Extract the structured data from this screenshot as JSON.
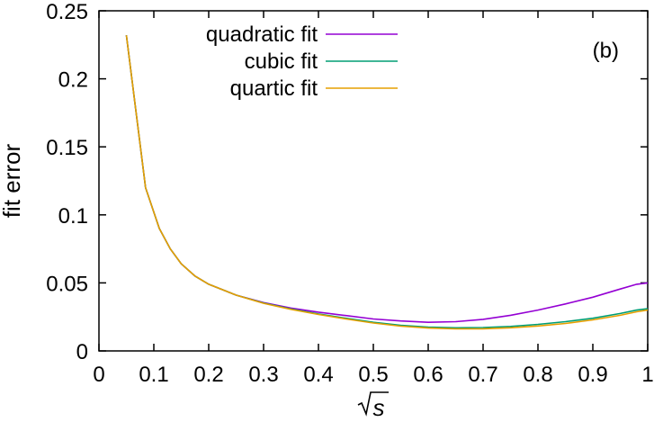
{
  "chart_data": {
    "type": "line",
    "title": "",
    "xlabel": "√s",
    "ylabel": "fit error",
    "xlim": [
      0,
      1
    ],
    "ylim": [
      0,
      0.25
    ],
    "xticks": [
      0,
      0.1,
      0.2,
      0.3,
      0.4,
      0.5,
      0.6,
      0.7,
      0.8,
      0.9,
      1
    ],
    "xtick_labels": [
      "0",
      "0.1",
      "0.2",
      "0.3",
      "0.4",
      "0.5",
      "0.6",
      "0.7",
      "0.8",
      "0.9",
      "1"
    ],
    "yticks": [
      0,
      0.05,
      0.1,
      0.15,
      0.2,
      0.25
    ],
    "ytick_labels": [
      "0",
      "0.05",
      "0.1",
      "0.15",
      "0.2",
      "0.25"
    ],
    "grid": false,
    "legend_position": "top-right",
    "annotation": "(b)",
    "series": [
      {
        "name": "quadratic fit",
        "color": "#9400d3",
        "x": [
          0.05,
          0.085,
          0.11,
          0.13,
          0.15,
          0.175,
          0.2,
          0.25,
          0.3,
          0.35,
          0.4,
          0.45,
          0.5,
          0.55,
          0.6,
          0.65,
          0.7,
          0.75,
          0.8,
          0.85,
          0.9,
          0.95,
          0.98,
          1.0
        ],
        "y": [
          0.232,
          0.12,
          0.09,
          0.075,
          0.064,
          0.055,
          0.049,
          0.041,
          0.0355,
          0.0315,
          0.0285,
          0.026,
          0.0235,
          0.022,
          0.021,
          0.0215,
          0.0232,
          0.0262,
          0.03,
          0.0345,
          0.0395,
          0.0455,
          0.049,
          0.05
        ]
      },
      {
        "name": "cubic fit",
        "color": "#009e73",
        "x": [
          0.05,
          0.085,
          0.11,
          0.13,
          0.15,
          0.175,
          0.2,
          0.25,
          0.3,
          0.35,
          0.4,
          0.45,
          0.5,
          0.55,
          0.6,
          0.65,
          0.7,
          0.75,
          0.8,
          0.85,
          0.9,
          0.95,
          0.98,
          1.0
        ],
        "y": [
          0.232,
          0.12,
          0.09,
          0.075,
          0.064,
          0.055,
          0.049,
          0.041,
          0.0352,
          0.0308,
          0.0272,
          0.024,
          0.021,
          0.0188,
          0.0175,
          0.017,
          0.0172,
          0.018,
          0.0195,
          0.0215,
          0.024,
          0.0275,
          0.03,
          0.031
        ]
      },
      {
        "name": "quartic fit",
        "color": "#e69f00",
        "x": [
          0.05,
          0.085,
          0.11,
          0.13,
          0.15,
          0.175,
          0.2,
          0.25,
          0.3,
          0.35,
          0.4,
          0.45,
          0.5,
          0.55,
          0.6,
          0.65,
          0.7,
          0.75,
          0.8,
          0.85,
          0.9,
          0.95,
          0.98,
          1.0
        ],
        "y": [
          0.232,
          0.12,
          0.09,
          0.075,
          0.064,
          0.055,
          0.049,
          0.041,
          0.035,
          0.0305,
          0.0268,
          0.0235,
          0.0205,
          0.0182,
          0.0168,
          0.0162,
          0.0163,
          0.017,
          0.0183,
          0.0202,
          0.0228,
          0.0262,
          0.0288,
          0.03
        ]
      }
    ]
  }
}
